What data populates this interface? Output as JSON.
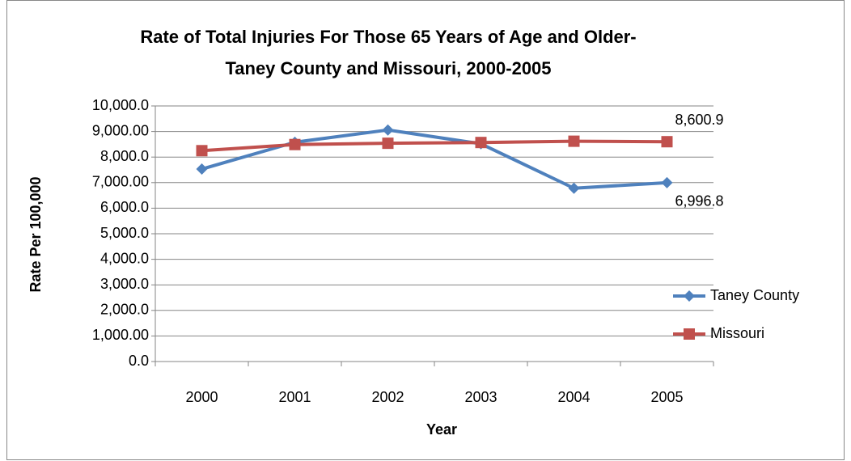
{
  "chart_data": {
    "type": "line",
    "title": [
      "Rate of Total Injuries For Those 65 Years of Age and Older-",
      "Taney County and Missouri, 2000-2005"
    ],
    "x_label": "Year",
    "y_label": "Rate Per 100,000",
    "categories": [
      "2000",
      "2001",
      "2002",
      "2003",
      "2004",
      "2005"
    ],
    "series": [
      {
        "name": "Taney County",
        "color": "#4f81bd",
        "marker": "diamond",
        "values": [
          7530,
          8580,
          9060,
          8520,
          6780,
          6996.8
        ],
        "value_labels": [
          null,
          null,
          null,
          null,
          null,
          "6,996.8"
        ]
      },
      {
        "name": "Missouri",
        "color": "#c0504d",
        "marker": "square",
        "values": [
          8250,
          8490,
          8540,
          8570,
          8620,
          8600.9
        ],
        "value_labels": [
          null,
          null,
          null,
          null,
          null,
          "8,600.9"
        ]
      }
    ],
    "ylim": [
      0,
      10000
    ],
    "yticks": [
      {
        "value": 0,
        "label": "0.0"
      },
      {
        "value": 1000,
        "label": "1,000.00"
      },
      {
        "value": 2000,
        "label": "2,000.0"
      },
      {
        "value": 3000,
        "label": "3,000.0"
      },
      {
        "value": 4000,
        "label": "4,000.0"
      },
      {
        "value": 5000,
        "label": "5,000.0"
      },
      {
        "value": 6000,
        "label": "6,000.0"
      },
      {
        "value": 7000,
        "label": "7,000.00"
      },
      {
        "value": 8000,
        "label": "8,000.0"
      },
      {
        "value": 9000,
        "label": "9,000.00"
      },
      {
        "value": 10000,
        "label": "10,000.0"
      }
    ],
    "grid": true,
    "legend": "right"
  }
}
